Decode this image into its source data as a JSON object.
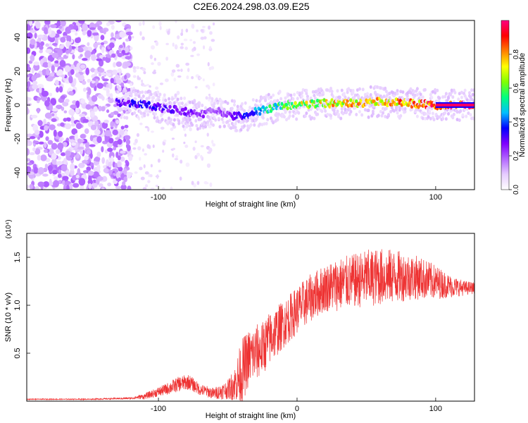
{
  "title": "C2E6.2024.298.03.09.E25",
  "chart_data": [
    {
      "type": "heatmap",
      "xlabel": "Height of straight line (km)",
      "ylabel": "Frequency (Hz)",
      "xlim": [
        -195,
        128
      ],
      "ylim": [
        -50,
        50
      ],
      "x_ticks": [
        -100,
        0,
        100
      ],
      "y_ticks": [
        -40,
        -20,
        0,
        20,
        40
      ],
      "colorbar": {
        "label": "Normalized spectral amplitude",
        "range": [
          0,
          1
        ],
        "ticks": [
          "0.0",
          "0.2",
          "0.4",
          "0.6",
          "0.8"
        ],
        "colors": [
          "#ffffff",
          "#e6ccff",
          "#b266ff",
          "#7f00ff",
          "#0000ff",
          "#00bfff",
          "#00ff80",
          "#80ff00",
          "#ffff00",
          "#ff8000",
          "#ff0000",
          "#ff0080"
        ]
      },
      "ridge": {
        "x": [
          -130,
          -110,
          -95,
          -80,
          -70,
          -60,
          -50,
          -40,
          -30,
          -20,
          -10,
          0,
          20,
          40,
          60,
          80,
          100,
          128
        ],
        "y": [
          2,
          0,
          -2,
          -4,
          -6,
          -3,
          -6,
          -7,
          -4,
          -2,
          0,
          0,
          1,
          1,
          2,
          1,
          0,
          0
        ],
        "amplitude": [
          0.3,
          0.35,
          0.3,
          0.3,
          0.25,
          0.2,
          0.25,
          0.35,
          0.45,
          0.55,
          0.6,
          0.7,
          0.75,
          0.8,
          0.8,
          0.85,
          0.95,
          1.0
        ]
      },
      "noise_region": {
        "x_range": [
          -195,
          -120
        ],
        "amplitude_range": [
          0.0,
          0.15
        ]
      }
    },
    {
      "type": "line",
      "xlabel": "Height of straight line (km)",
      "ylabel": "SNR (10 * v/v)",
      "y_multiplier": "(x10⁴)",
      "xlim": [
        -195,
        128
      ],
      "ylim": [
        0,
        1.75
      ],
      "x_ticks": [
        -100,
        0,
        100
      ],
      "y_ticks": [
        "0.5",
        "1.0",
        "1.5"
      ],
      "color": "#ee3333",
      "series": [
        {
          "x": [
            -195,
            -150,
            -120,
            -110,
            -95,
            -85,
            -78,
            -70,
            -60,
            -50,
            -45,
            -40,
            -35,
            -30,
            -25,
            -20,
            -10,
            0,
            10,
            20,
            30,
            40,
            50,
            60,
            70,
            80,
            90,
            100,
            110,
            120,
            128
          ],
          "y": [
            0.02,
            0.02,
            0.03,
            0.05,
            0.12,
            0.18,
            0.2,
            0.12,
            0.08,
            0.12,
            0.18,
            0.3,
            0.45,
            0.5,
            0.55,
            0.65,
            0.8,
            0.95,
            1.08,
            1.18,
            1.22,
            1.25,
            1.28,
            1.3,
            1.3,
            1.3,
            1.28,
            1.24,
            1.2,
            1.18,
            1.18
          ],
          "noise": [
            0.005,
            0.005,
            0.01,
            0.03,
            0.06,
            0.08,
            0.08,
            0.06,
            0.06,
            0.1,
            0.18,
            0.35,
            0.3,
            0.3,
            0.28,
            0.28,
            0.25,
            0.25,
            0.25,
            0.25,
            0.28,
            0.28,
            0.3,
            0.3,
            0.28,
            0.25,
            0.22,
            0.18,
            0.12,
            0.08,
            0.06
          ]
        }
      ]
    }
  ]
}
